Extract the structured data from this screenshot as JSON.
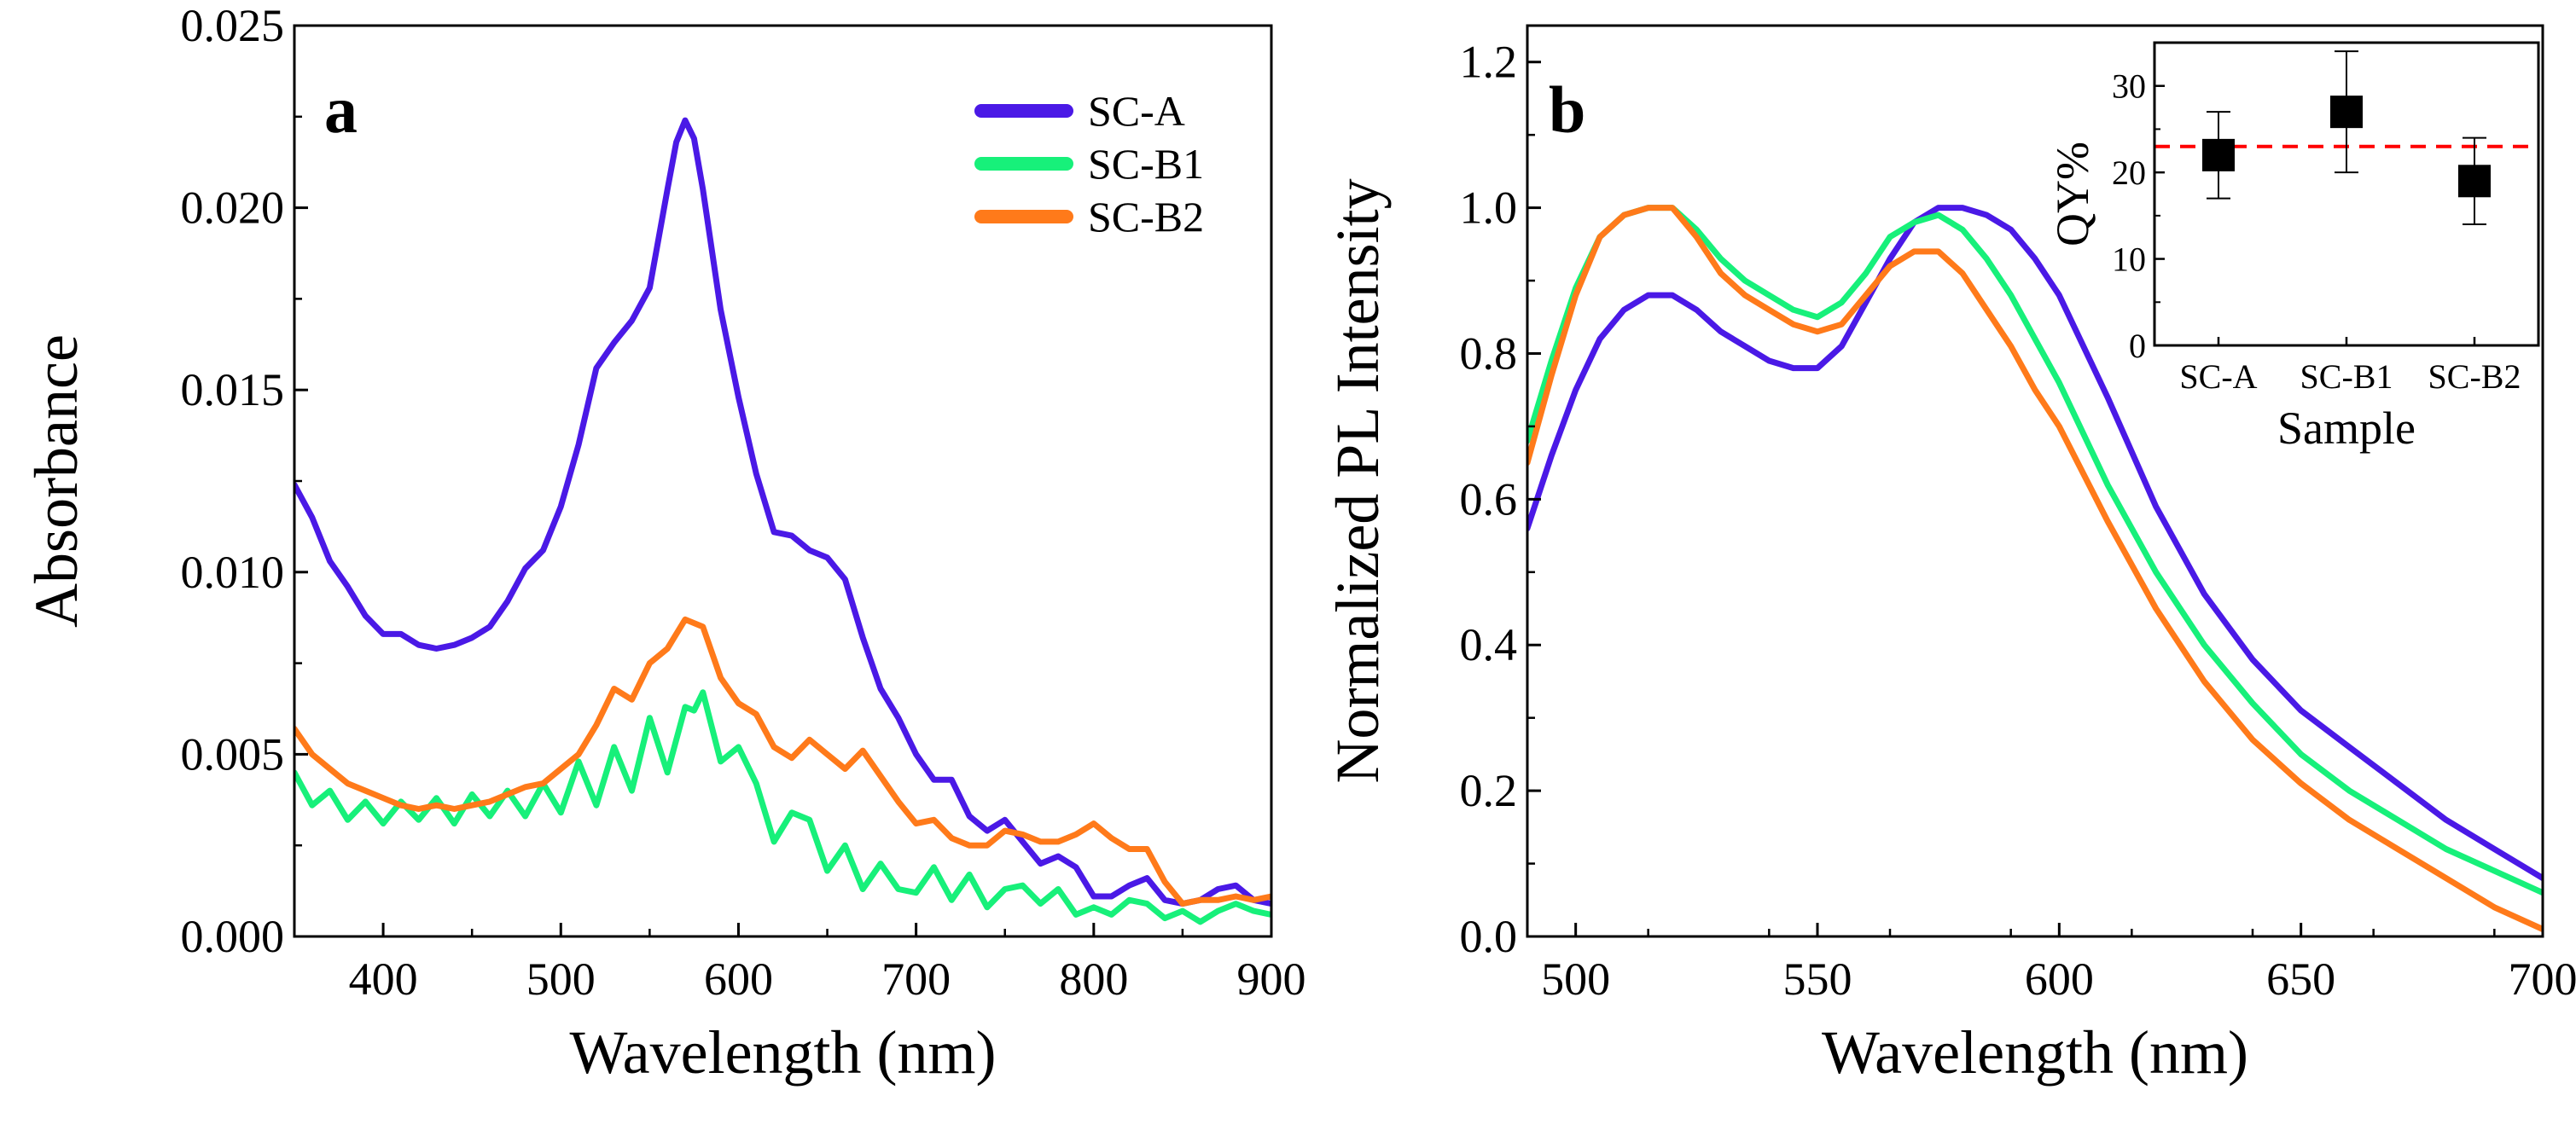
{
  "chart_data": [
    {
      "panel": "a",
      "type": "line",
      "title": "",
      "xlabel": "Wavelength (nm)",
      "ylabel": "Absorbance",
      "xlim": [
        350,
        900
      ],
      "ylim": [
        0,
        0.025
      ],
      "xticks": [
        400,
        500,
        600,
        700,
        800,
        900
      ],
      "yticks": [
        0.0,
        0.005,
        0.01,
        0.015,
        0.02,
        0.025
      ],
      "xtick_labels": [
        "400",
        "500",
        "600",
        "700",
        "800",
        "900"
      ],
      "ytick_labels": [
        "0.000",
        "0.005",
        "0.010",
        "0.015",
        "0.020",
        "0.025"
      ],
      "legend_position": "top-right",
      "series": [
        {
          "name": "SC-A",
          "color": "#4a19e6",
          "x": [
            350,
            360,
            370,
            380,
            390,
            400,
            410,
            420,
            430,
            440,
            450,
            460,
            470,
            480,
            490,
            500,
            510,
            520,
            530,
            540,
            550,
            560,
            565,
            570,
            575,
            580,
            590,
            600,
            610,
            620,
            630,
            640,
            650,
            660,
            670,
            680,
            690,
            700,
            710,
            720,
            730,
            740,
            750,
            760,
            770,
            780,
            790,
            800,
            810,
            820,
            830,
            840,
            850,
            860,
            870,
            880,
            890,
            900
          ],
          "y": [
            0.0124,
            0.0115,
            0.0103,
            0.0096,
            0.0088,
            0.0083,
            0.0083,
            0.008,
            0.0079,
            0.008,
            0.0082,
            0.0085,
            0.0092,
            0.0101,
            0.0106,
            0.0118,
            0.0135,
            0.0156,
            0.0163,
            0.0169,
            0.0178,
            0.0205,
            0.0218,
            0.0224,
            0.0219,
            0.0205,
            0.0172,
            0.0148,
            0.0127,
            0.0111,
            0.011,
            0.0106,
            0.0104,
            0.0098,
            0.0082,
            0.0068,
            0.006,
            0.005,
            0.0043,
            0.0043,
            0.0033,
            0.0029,
            0.0032,
            0.0026,
            0.002,
            0.0022,
            0.0019,
            0.0011,
            0.0011,
            0.0014,
            0.0016,
            0.001,
            0.0009,
            0.001,
            0.0013,
            0.0014,
            0.001,
            0.0009
          ]
        },
        {
          "name": "SC-B1",
          "color": "#17f07a",
          "x": [
            350,
            360,
            370,
            380,
            390,
            400,
            410,
            420,
            430,
            440,
            450,
            460,
            470,
            480,
            490,
            500,
            510,
            520,
            530,
            540,
            550,
            560,
            570,
            575,
            580,
            590,
            600,
            610,
            620,
            630,
            640,
            650,
            660,
            670,
            680,
            690,
            700,
            710,
            720,
            730,
            740,
            750,
            760,
            770,
            780,
            790,
            800,
            810,
            820,
            830,
            840,
            850,
            860,
            870,
            880,
            890,
            900
          ],
          "y": [
            0.0045,
            0.0036,
            0.004,
            0.0032,
            0.0037,
            0.0031,
            0.0037,
            0.0032,
            0.0038,
            0.0031,
            0.0039,
            0.0033,
            0.004,
            0.0033,
            0.0042,
            0.0034,
            0.0048,
            0.0036,
            0.0052,
            0.004,
            0.006,
            0.0045,
            0.0063,
            0.0062,
            0.0067,
            0.0048,
            0.0052,
            0.0042,
            0.0026,
            0.0034,
            0.0032,
            0.0018,
            0.0025,
            0.0013,
            0.002,
            0.0013,
            0.0012,
            0.0019,
            0.001,
            0.0017,
            0.0008,
            0.0013,
            0.0014,
            0.0009,
            0.0013,
            0.0006,
            0.0008,
            0.0006,
            0.001,
            0.0009,
            0.0005,
            0.0007,
            0.0004,
            0.0007,
            0.0009,
            0.0007,
            0.0006
          ]
        },
        {
          "name": "SC-B2",
          "color": "#ff7a1a",
          "x": [
            350,
            360,
            370,
            380,
            390,
            400,
            410,
            420,
            430,
            440,
            450,
            460,
            470,
            480,
            490,
            500,
            510,
            520,
            530,
            540,
            550,
            560,
            570,
            580,
            590,
            600,
            610,
            620,
            630,
            640,
            650,
            660,
            670,
            680,
            690,
            700,
            710,
            720,
            730,
            740,
            750,
            760,
            770,
            780,
            790,
            800,
            810,
            820,
            830,
            840,
            850,
            860,
            870,
            880,
            890,
            900
          ],
          "y": [
            0.0057,
            0.005,
            0.0046,
            0.0042,
            0.004,
            0.0038,
            0.0036,
            0.0035,
            0.0036,
            0.0035,
            0.0036,
            0.0037,
            0.0039,
            0.0041,
            0.0042,
            0.0046,
            0.005,
            0.0058,
            0.0068,
            0.0065,
            0.0075,
            0.0079,
            0.0087,
            0.0085,
            0.0071,
            0.0064,
            0.0061,
            0.0052,
            0.0049,
            0.0054,
            0.005,
            0.0046,
            0.0051,
            0.0044,
            0.0037,
            0.0031,
            0.0032,
            0.0027,
            0.0025,
            0.0025,
            0.0029,
            0.0028,
            0.0026,
            0.0026,
            0.0028,
            0.0031,
            0.0027,
            0.0024,
            0.0024,
            0.0015,
            0.0009,
            0.001,
            0.001,
            0.0011,
            0.001,
            0.0011
          ]
        }
      ]
    },
    {
      "panel": "b",
      "type": "line",
      "title": "",
      "xlabel": "Wavelength (nm)",
      "ylabel": "Normalized PL Intensity",
      "xlim": [
        490,
        700
      ],
      "ylim": [
        0,
        1.25
      ],
      "xticks": [
        500,
        550,
        600,
        650,
        700
      ],
      "yticks": [
        0.0,
        0.2,
        0.4,
        0.6,
        0.8,
        1.0,
        1.2
      ],
      "xtick_labels": [
        "500",
        "550",
        "600",
        "650",
        "700"
      ],
      "ytick_labels": [
        "0.0",
        "0.2",
        "0.4",
        "0.6",
        "0.8",
        "1.0",
        "1.2"
      ],
      "series": [
        {
          "name": "SC-A",
          "color": "#4a19e6",
          "x": [
            490,
            495,
            500,
            505,
            510,
            515,
            520,
            525,
            530,
            535,
            540,
            545,
            550,
            555,
            560,
            565,
            570,
            575,
            580,
            585,
            590,
            595,
            600,
            610,
            620,
            630,
            640,
            650,
            660,
            670,
            680,
            690,
            700
          ],
          "y": [
            0.56,
            0.66,
            0.75,
            0.82,
            0.86,
            0.88,
            0.88,
            0.86,
            0.83,
            0.81,
            0.79,
            0.78,
            0.78,
            0.81,
            0.87,
            0.93,
            0.98,
            1.0,
            1.0,
            0.99,
            0.97,
            0.93,
            0.88,
            0.74,
            0.59,
            0.47,
            0.38,
            0.31,
            0.26,
            0.21,
            0.16,
            0.12,
            0.08
          ]
        },
        {
          "name": "SC-B1",
          "color": "#17f07a",
          "x": [
            490,
            495,
            500,
            505,
            510,
            515,
            520,
            525,
            530,
            535,
            540,
            545,
            550,
            555,
            560,
            565,
            570,
            575,
            580,
            585,
            590,
            595,
            600,
            610,
            620,
            630,
            640,
            650,
            660,
            670,
            680,
            690,
            700
          ],
          "y": [
            0.68,
            0.79,
            0.89,
            0.96,
            0.99,
            1.0,
            1.0,
            0.97,
            0.93,
            0.9,
            0.88,
            0.86,
            0.85,
            0.87,
            0.91,
            0.96,
            0.98,
            0.99,
            0.97,
            0.93,
            0.88,
            0.82,
            0.76,
            0.62,
            0.5,
            0.4,
            0.32,
            0.25,
            0.2,
            0.16,
            0.12,
            0.09,
            0.06
          ]
        },
        {
          "name": "SC-B2",
          "color": "#ff7a1a",
          "x": [
            490,
            495,
            500,
            505,
            510,
            515,
            520,
            525,
            530,
            535,
            540,
            545,
            550,
            555,
            560,
            565,
            570,
            575,
            580,
            585,
            590,
            595,
            600,
            610,
            620,
            630,
            640,
            650,
            660,
            670,
            680,
            690,
            700
          ],
          "y": [
            0.65,
            0.77,
            0.88,
            0.96,
            0.99,
            1.0,
            1.0,
            0.96,
            0.91,
            0.88,
            0.86,
            0.84,
            0.83,
            0.84,
            0.88,
            0.92,
            0.94,
            0.94,
            0.91,
            0.86,
            0.81,
            0.75,
            0.7,
            0.57,
            0.45,
            0.35,
            0.27,
            0.21,
            0.16,
            0.12,
            0.08,
            0.04,
            0.01
          ]
        }
      ]
    },
    {
      "panel": "b-inset",
      "type": "scatter",
      "xlabel": "Sample",
      "ylabel": "QY%",
      "categories": [
        "SC-A",
        "SC-B1",
        "SC-B2"
      ],
      "values": [
        22,
        27,
        19
      ],
      "errors": [
        5,
        7,
        5
      ],
      "reference_line": 23,
      "reference_color": "#ff0000",
      "ylim": [
        0,
        35
      ],
      "yticks": [
        0,
        10,
        20,
        30
      ],
      "ytick_labels": [
        "0",
        "10",
        "20",
        "30"
      ]
    }
  ],
  "panels": {
    "a": "a",
    "b": "b"
  }
}
